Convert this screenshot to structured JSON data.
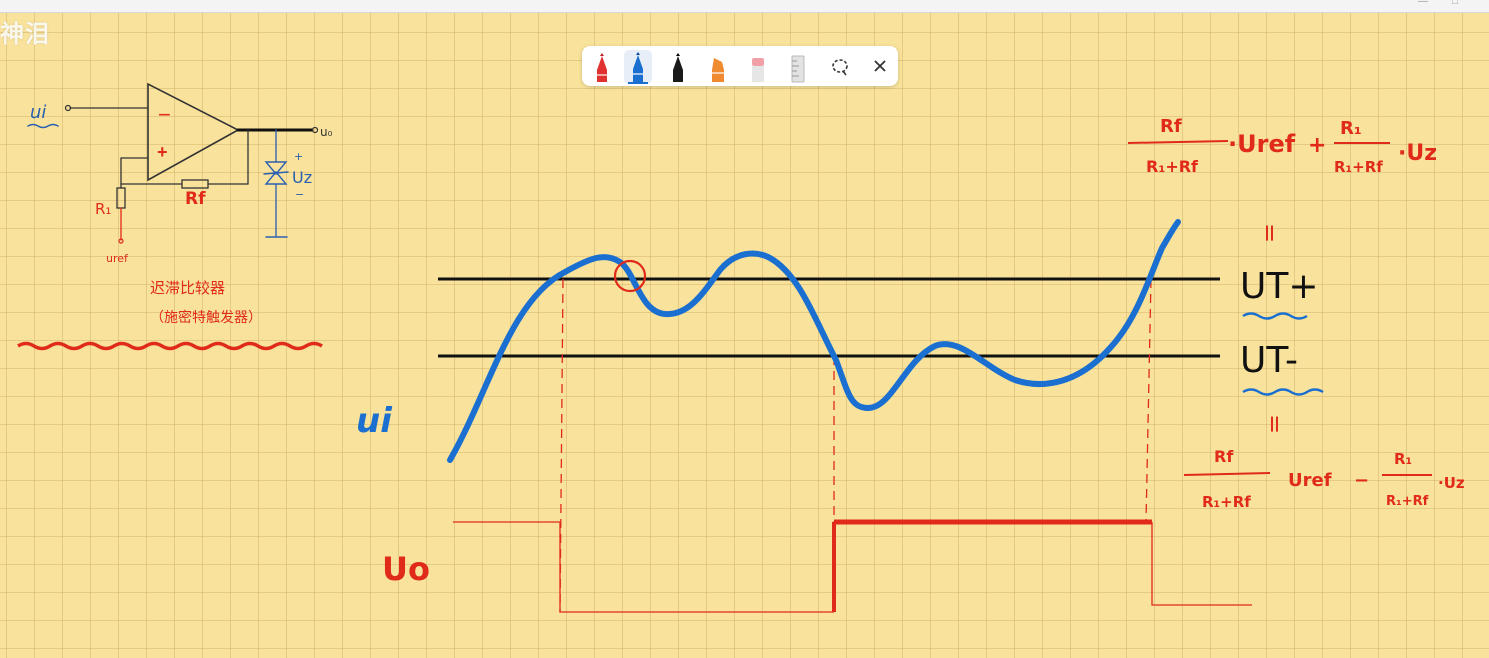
{
  "watermark": "神泪",
  "toolbar": {
    "tools": [
      {
        "name": "red-pen",
        "color": "#e03030"
      },
      {
        "name": "blue-pen",
        "color": "#1a6fd0",
        "selected": true
      },
      {
        "name": "black-pen",
        "color": "#1a1a1a"
      },
      {
        "name": "highlighter",
        "color": "#f08a30"
      },
      {
        "name": "eraser",
        "color": "#f2a0a8"
      },
      {
        "name": "ruler",
        "color": "#cccccc"
      },
      {
        "name": "lasso",
        "icon": "lasso-icon"
      },
      {
        "name": "close",
        "icon": "close-icon"
      }
    ]
  },
  "circuit": {
    "input_label": "ui",
    "minus_sign": "−",
    "plus_sign": "+",
    "output_label": "u₀",
    "r1_label": "R₁",
    "rf_label": "Rf",
    "uref_label": "uref",
    "zener_label": "Uz",
    "zener_plus": "+",
    "zener_minus": "−"
  },
  "notes": {
    "title": "迟滞比较器",
    "subtitle": "（施密特触发器）"
  },
  "graph": {
    "ui_label": "ui",
    "uo_label": "Uo",
    "ut_plus_label": "UT+",
    "ut_minus_label": "UT-",
    "eq_sign": "="
  },
  "formula_plus": {
    "term1_num": "Rf",
    "term1_den": "R₁+Rf",
    "term1_factor": "·Uref",
    "op": "+",
    "term2_num": "R₁",
    "term2_den": "R₁+Rf",
    "term2_factor": "·Uz"
  },
  "formula_minus": {
    "term1_num": "Rf",
    "term1_den": "R₁+Rf",
    "term1_factor": "Uref",
    "op": "−",
    "term2_num": "R₁",
    "term2_den": "R₁+Rf",
    "term2_factor": "·Uz"
  },
  "colors": {
    "background": "#f9e39c",
    "ink_blue": "#1a6fd0",
    "ink_red": "#e02a1a",
    "ink_black": "#111111",
    "ink_dark_blue": "#2a5fb0"
  }
}
